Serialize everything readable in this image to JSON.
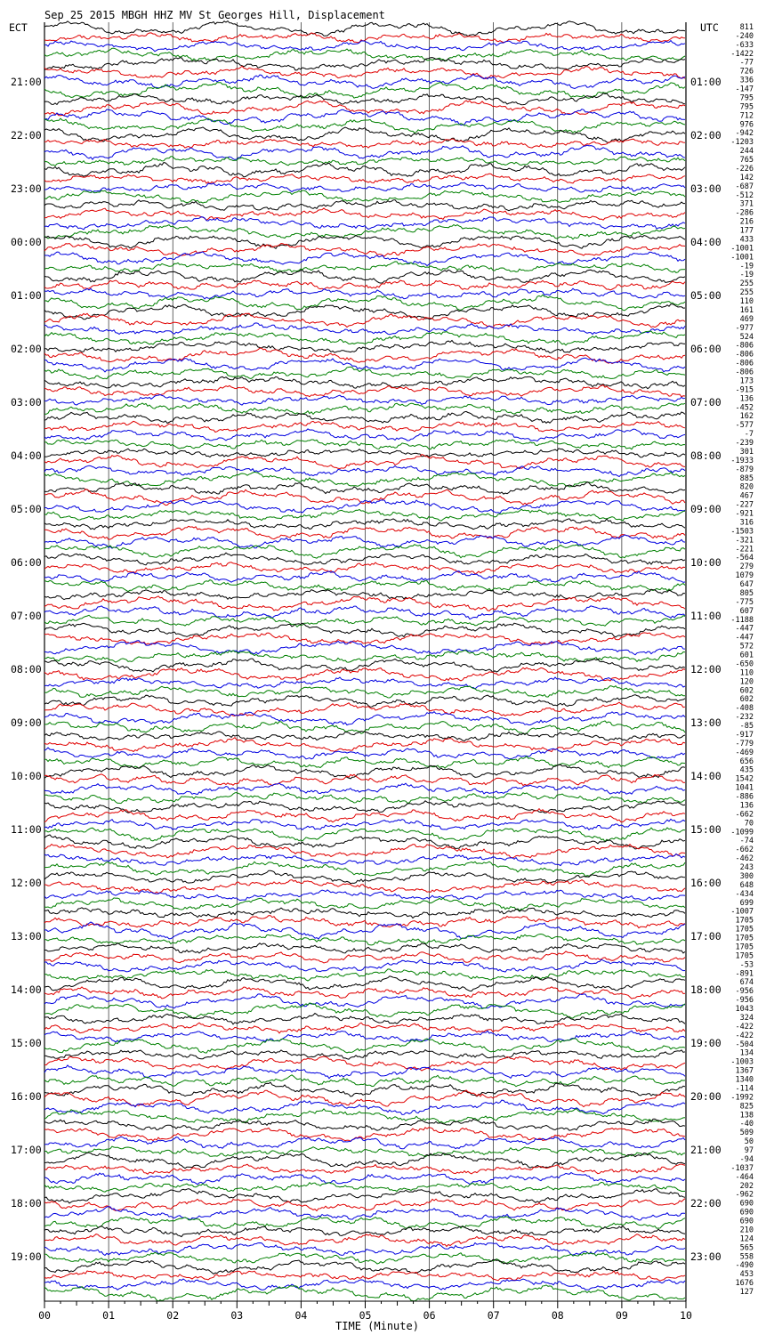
{
  "chart_data": {
    "type": "line",
    "title": "Sep 25 2015 MBGH HHZ MV St Georges Hill, Displacement",
    "left_axis_label": "ECT",
    "right_axis_label": "UTC",
    "xlabel": "TIME (Minute)",
    "x_ticks": [
      "00",
      "01",
      "02",
      "03",
      "04",
      "05",
      "06",
      "07",
      "08",
      "09",
      "10"
    ],
    "xlim": [
      0,
      10
    ],
    "grid": "vertical lines at each minute",
    "trace_colors": [
      "#000000",
      "#e00000",
      "#0000e0",
      "#008000"
    ],
    "left_hour_labels": [
      "21:00",
      "22:00",
      "23:00",
      "00:00",
      "01:00",
      "02:00",
      "03:00",
      "04:00",
      "05:00",
      "06:00",
      "07:00",
      "08:00",
      "09:00",
      "10:00",
      "11:00",
      "12:00",
      "13:00",
      "14:00",
      "15:00",
      "16:00",
      "17:00",
      "18:00",
      "19:00"
    ],
    "right_hour_labels": [
      "01:00",
      "02:00",
      "03:00",
      "04:00",
      "05:00",
      "06:00",
      "07:00",
      "08:00",
      "09:00",
      "10:00",
      "11:00",
      "12:00",
      "13:00",
      "14:00",
      "15:00",
      "16:00",
      "17:00",
      "18:00",
      "19:00",
      "20:00",
      "21:00",
      "22:00",
      "23:00"
    ],
    "trace_offsets": [
      "811",
      "-240",
      "-633",
      "-1422",
      "-77",
      "726",
      "336",
      "-147",
      "795",
      "795",
      "712",
      "976",
      "-942",
      "-1203",
      "244",
      "765",
      "-226",
      "142",
      "-687",
      "-512",
      "371",
      "-286",
      "216",
      "177",
      "433",
      "-1001",
      "-1001",
      "-19",
      "-19",
      "255",
      "255",
      "110",
      "161",
      "469",
      "-977",
      "524",
      "-806",
      "-806",
      "-806",
      "-806",
      "173",
      "-915",
      "136",
      "-452",
      "162",
      "-577",
      "-7",
      "-239",
      "301",
      "-1933",
      "-879",
      "885",
      "820",
      "467",
      "-227",
      "-921",
      "316",
      "-1503",
      "-321",
      "-221",
      "-564",
      "279",
      "1079",
      "647",
      "805",
      "-775",
      "607",
      "-1188",
      "-447",
      "-447",
      "572",
      "601",
      "-650",
      "110",
      "120",
      "602",
      "602",
      "-408",
      "-232",
      "-85",
      "-917",
      "-779",
      "-469",
      "656",
      "435",
      "1542",
      "1041",
      "-886",
      "136",
      "-662",
      "70",
      "-1099",
      "-74",
      "-662",
      "-462",
      "243",
      "300",
      "648",
      "-434",
      "699",
      "-1007",
      "1705",
      "1705",
      "1705",
      "1705",
      "1705",
      "-53",
      "-891",
      "674",
      "-956",
      "-956",
      "1043",
      "324",
      "-422",
      "-422",
      "-504",
      "134",
      "-1003",
      "1367",
      "1340",
      "-114",
      "-1992",
      "825",
      "138",
      "-40",
      "509",
      "50",
      "97",
      "-94",
      "-1037",
      "-464",
      "202",
      "-962",
      "690",
      "690",
      "690",
      "210",
      "124",
      "565",
      "558",
      "-490",
      "453",
      "1676",
      "127"
    ]
  }
}
